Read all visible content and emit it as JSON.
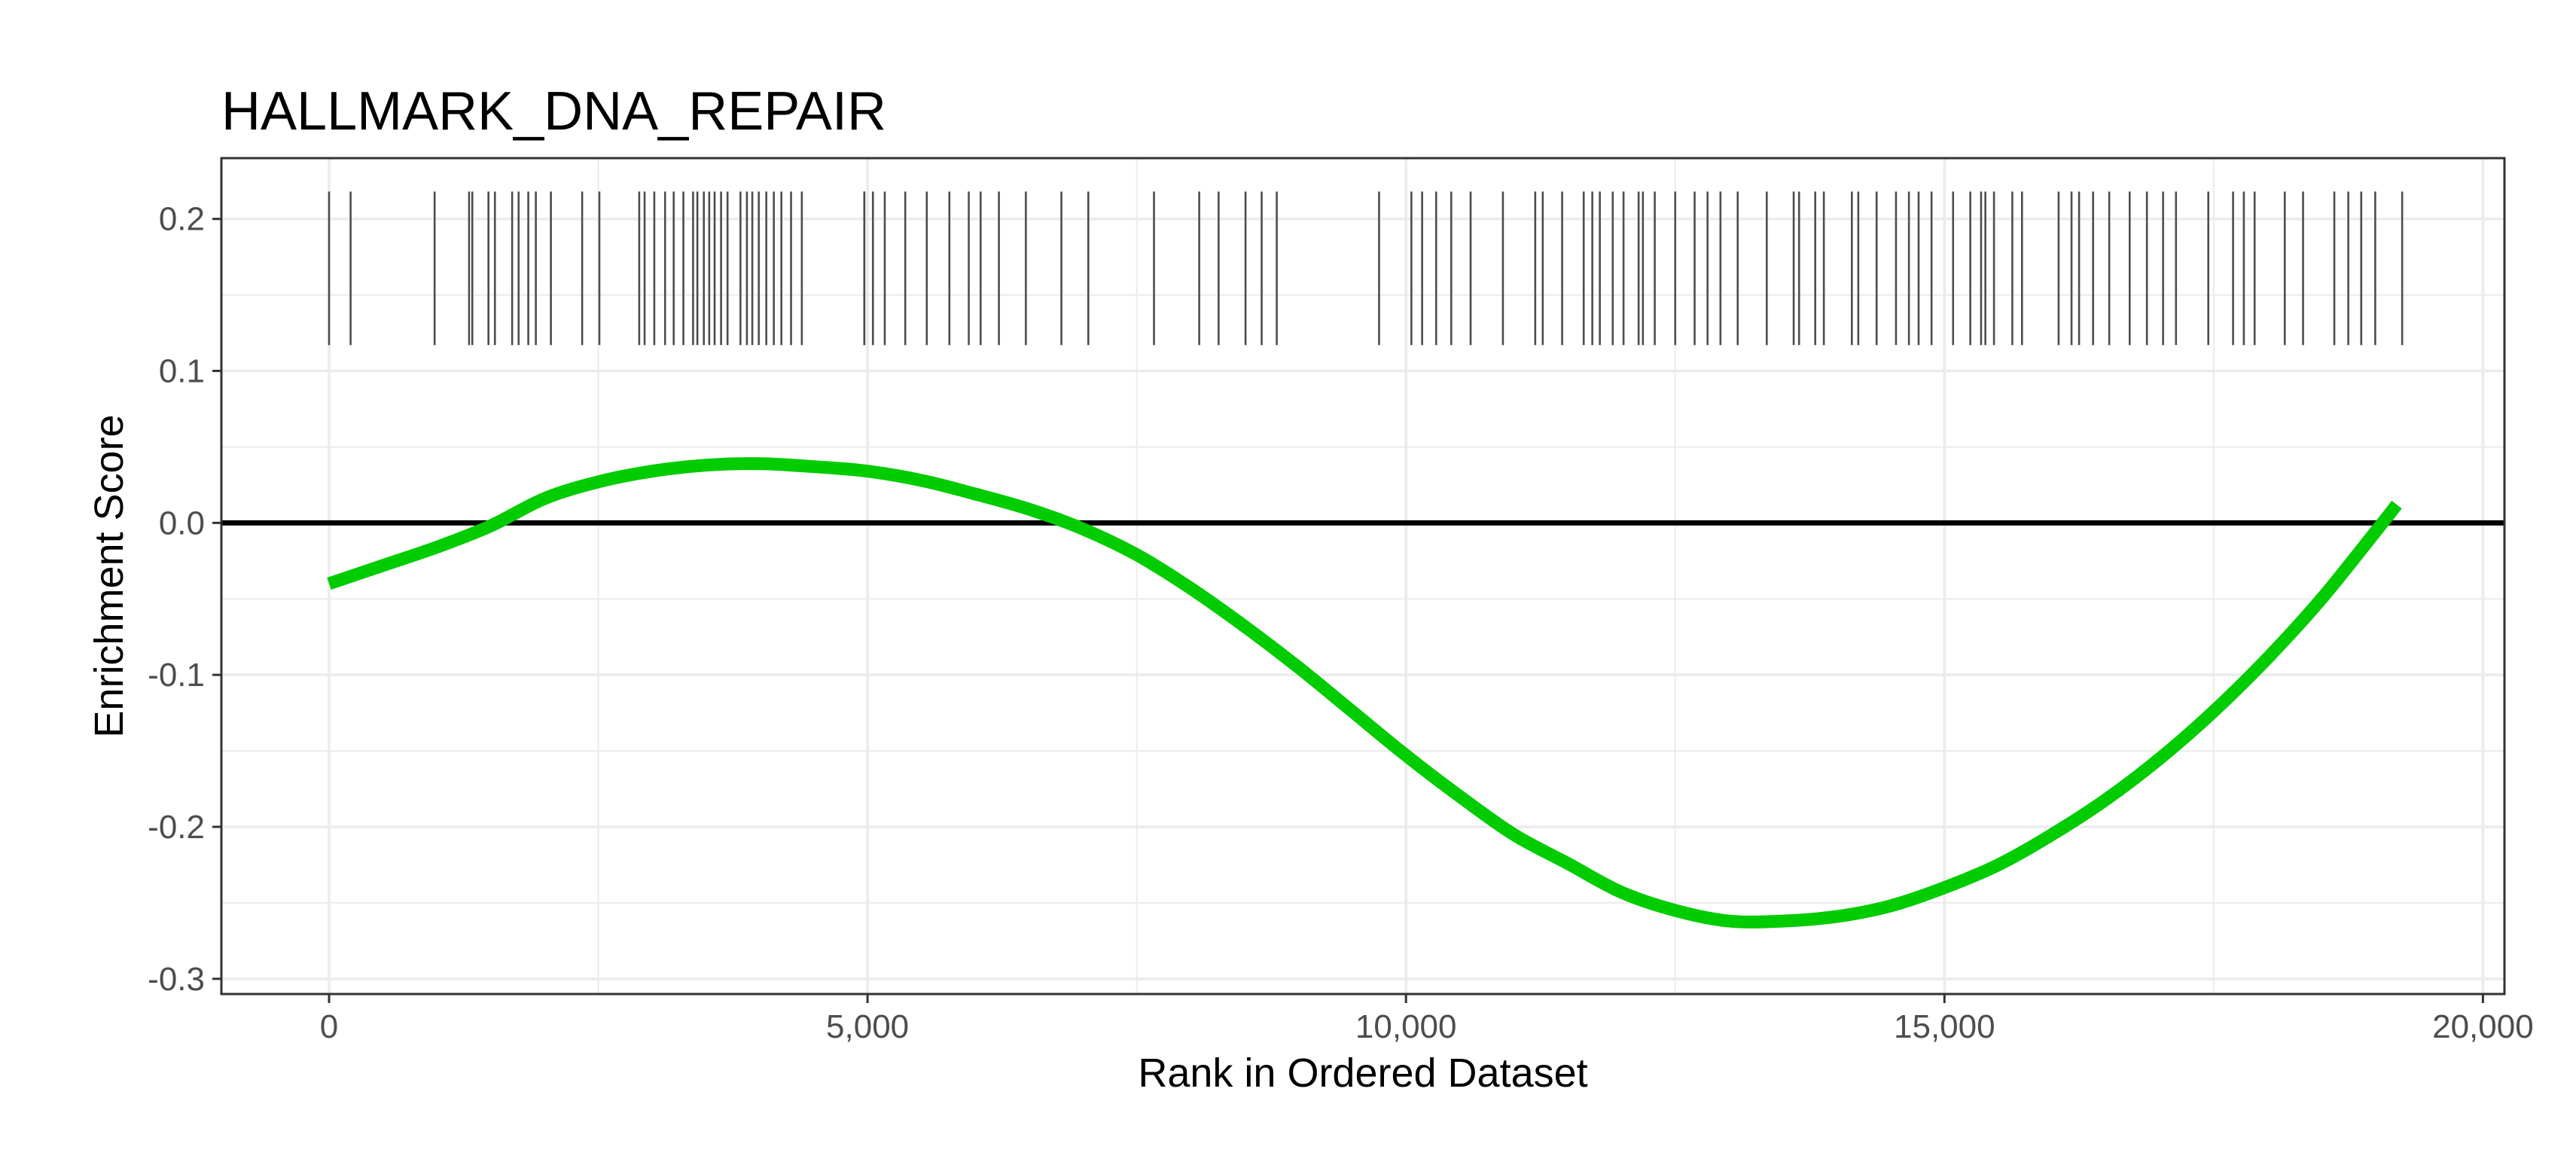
{
  "chart_data": {
    "type": "line",
    "title": "HALLMARK_DNA_REPAIR",
    "xlabel": "Rank in Ordered Dataset",
    "ylabel": "Enrichment Score",
    "xlim": [
      -1000,
      20200
    ],
    "ylim": [
      -0.31,
      0.24
    ],
    "x_ticks": [
      0,
      5000,
      10000,
      15000,
      20000
    ],
    "x_tick_labels": [
      "0",
      "5,000",
      "10,000",
      "15,000",
      "20,000"
    ],
    "y_ticks": [
      0.2,
      0.1,
      0.0,
      -0.1,
      -0.2,
      -0.3
    ],
    "y_tick_labels": [
      "0.2",
      "0.1",
      "0.0",
      "-0.1",
      "-0.2",
      "-0.3"
    ],
    "grid": true,
    "reference_line_y": 0,
    "colors": {
      "curve": "#00cc00",
      "ticks": "#4d4d4d",
      "reference": "#000000",
      "grid": "#ebebeb"
    },
    "series": [
      {
        "x": [
          0,
          500,
          1000,
          1500,
          2000,
          2500,
          3000,
          3500,
          4000,
          4500,
          5000,
          5500,
          6000,
          6500,
          7000,
          7500,
          8000,
          8500,
          9000,
          9500,
          10000,
          10500,
          11000,
          11500,
          12000,
          12500,
          13000,
          13500,
          14000,
          14500,
          15000,
          15500,
          16000,
          16500,
          17000,
          17500,
          18000,
          18500,
          19000,
          19200
        ],
        "y": [
          -0.04,
          -0.028,
          -0.016,
          -0.002,
          0.016,
          0.027,
          0.034,
          0.038,
          0.039,
          0.037,
          0.034,
          0.028,
          0.019,
          0.009,
          -0.004,
          -0.021,
          -0.043,
          -0.068,
          -0.095,
          -0.124,
          -0.153,
          -0.18,
          -0.205,
          -0.224,
          -0.243,
          -0.255,
          -0.262,
          -0.262,
          -0.259,
          -0.252,
          -0.24,
          -0.225,
          -0.205,
          -0.182,
          -0.155,
          -0.124,
          -0.089,
          -0.05,
          -0.006,
          0.012
        ]
      }
    ],
    "gene_hits": [
      0,
      200,
      980,
      1300,
      1330,
      1480,
      1540,
      1700,
      1760,
      1850,
      1920,
      2060,
      2350,
      2510,
      2880,
      2930,
      3020,
      3120,
      3200,
      3290,
      3380,
      3420,
      3480,
      3530,
      3580,
      3640,
      3700,
      3820,
      3880,
      3930,
      3990,
      4060,
      4130,
      4200,
      4290,
      4390,
      4970,
      4970,
      5050,
      5160,
      5350,
      5550,
      5760,
      5940,
      6050,
      6220,
      6470,
      6800,
      7050,
      7660,
      8080,
      8260,
      8510,
      8660,
      8800,
      9750,
      10050,
      10150,
      10280,
      10420,
      10600,
      10900,
      11200,
      11270,
      11450,
      11650,
      11730,
      11800,
      11920,
      12020,
      12160,
      12200,
      12310,
      12500,
      12680,
      12800,
      12920,
      13080,
      13350,
      13600,
      13650,
      13800,
      13880,
      14140,
      14200,
      14370,
      14550,
      14670,
      14760,
      14880,
      15080,
      15240,
      15340,
      15380,
      15460,
      15630,
      15720,
      16060,
      16180,
      16250,
      16380,
      16530,
      16720,
      16880,
      17030,
      17150,
      17450,
      17680,
      17780,
      17880,
      18160,
      18330,
      18620,
      18750,
      18870,
      19000,
      19250
    ]
  }
}
